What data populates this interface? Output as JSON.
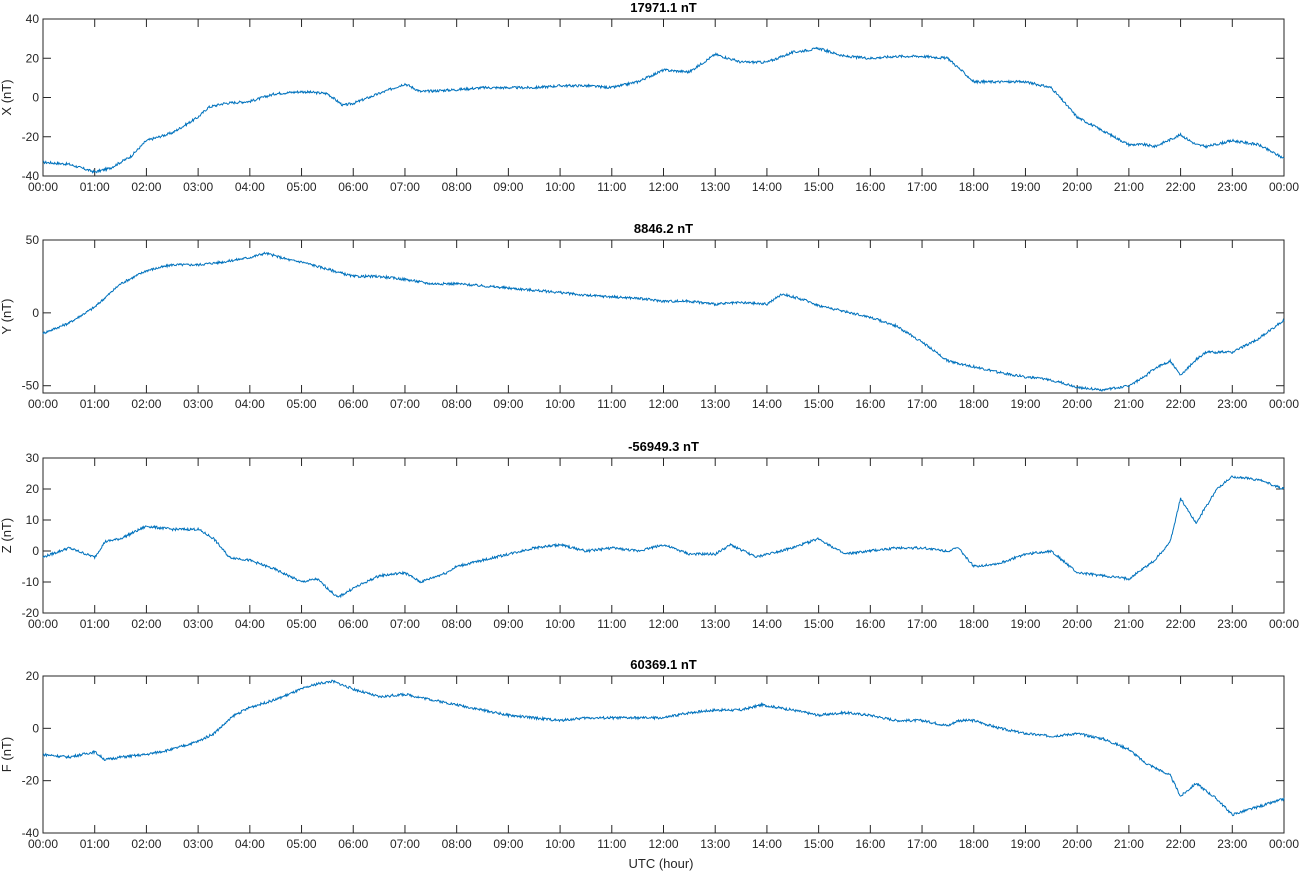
{
  "chart_data": [
    {
      "type": "line",
      "title": "17971.1 nT",
      "ylabel": "X (nT)",
      "xlabel": "",
      "ylim": [
        -40,
        40
      ],
      "yticks": [
        "-40",
        "-20",
        "0",
        "20",
        "40"
      ],
      "xticks": [
        "00:00",
        "01:00",
        "02:00",
        "03:00",
        "04:00",
        "05:00",
        "06:00",
        "07:00",
        "08:00",
        "09:00",
        "10:00",
        "11:00",
        "12:00",
        "13:00",
        "14:00",
        "15:00",
        "16:00",
        "17:00",
        "18:00",
        "19:00",
        "20:00",
        "21:00",
        "22:00",
        "23:00",
        "00:00"
      ],
      "grid": false,
      "line_color": "#0072BD",
      "series": [
        {
          "x": [
            0,
            0.5,
            1,
            1.3,
            1.7,
            2,
            2.5,
            3,
            3.2,
            3.5,
            4,
            4.5,
            5,
            5.5,
            5.8,
            6,
            6.5,
            7,
            7.3,
            8,
            8.5,
            9,
            9.5,
            10,
            10.5,
            11,
            11.5,
            12,
            12.5,
            13,
            13.5,
            14,
            14.5,
            15,
            15.5,
            16,
            16.5,
            17,
            17.5,
            18,
            18.5,
            19,
            19.5,
            20,
            20.5,
            21,
            21.3,
            21.5,
            22,
            22.3,
            22.5,
            23,
            23.5,
            24
          ],
          "values": [
            -33,
            -34,
            -38,
            -36,
            -30,
            -22,
            -18,
            -10,
            -5,
            -3,
            -2,
            2,
            3,
            2,
            -4,
            -3,
            2,
            7,
            3,
            4,
            5,
            5,
            5,
            6,
            6,
            5,
            8,
            14,
            13,
            22,
            18,
            18,
            23,
            25,
            21,
            20,
            21,
            21,
            20,
            8,
            8,
            8,
            5,
            -10,
            -17,
            -24,
            -24,
            -25,
            -19,
            -24,
            -25,
            -22,
            -24,
            -31
          ]
        }
      ]
    },
    {
      "type": "line",
      "title": "8846.2 nT",
      "ylabel": "Y (nT)",
      "xlabel": "",
      "ylim": [
        -55,
        50
      ],
      "yticks": [
        "-50",
        "0",
        "50"
      ],
      "xticks": [
        "00:00",
        "01:00",
        "02:00",
        "03:00",
        "04:00",
        "05:00",
        "06:00",
        "07:00",
        "08:00",
        "09:00",
        "10:00",
        "11:00",
        "12:00",
        "13:00",
        "14:00",
        "15:00",
        "16:00",
        "17:00",
        "18:00",
        "19:00",
        "20:00",
        "21:00",
        "22:00",
        "23:00",
        "00:00"
      ],
      "grid": false,
      "line_color": "#0072BD",
      "series": [
        {
          "x": [
            0,
            0.5,
            1,
            1.5,
            2,
            2.5,
            3,
            3.5,
            4,
            4.3,
            4.8,
            5,
            5.5,
            6,
            6.5,
            7,
            7.5,
            8,
            9,
            10,
            10.5,
            11,
            11.5,
            12,
            12.5,
            13,
            13.5,
            14,
            14.3,
            14.8,
            15,
            15.5,
            16,
            16.5,
            17,
            17.5,
            18,
            18.5,
            19,
            19.5,
            20,
            20.5,
            21,
            21.3,
            21.5,
            21.8,
            22,
            22.3,
            22.5,
            23,
            23.5,
            24
          ],
          "values": [
            -14,
            -7,
            4,
            20,
            29,
            33,
            33,
            35,
            38,
            41,
            36,
            35,
            30,
            25,
            25,
            23,
            20,
            20,
            17,
            14,
            12,
            11,
            10,
            8,
            8,
            6,
            7,
            6,
            13,
            8,
            5,
            1,
            -3,
            -9,
            -20,
            -33,
            -37,
            -41,
            -44,
            -46,
            -51,
            -53,
            -50,
            -44,
            -38,
            -33,
            -43,
            -32,
            -27,
            -27,
            -18,
            -5
          ]
        }
      ]
    },
    {
      "type": "line",
      "title": "-56949.3 nT",
      "ylabel": "Z (nT)",
      "xlabel": "",
      "ylim": [
        -20,
        30
      ],
      "yticks": [
        "-20",
        "-10",
        "0",
        "10",
        "20",
        "30"
      ],
      "xticks": [
        "00:00",
        "01:00",
        "02:00",
        "03:00",
        "04:00",
        "05:00",
        "06:00",
        "07:00",
        "08:00",
        "09:00",
        "10:00",
        "11:00",
        "12:00",
        "13:00",
        "14:00",
        "15:00",
        "16:00",
        "17:00",
        "18:00",
        "19:00",
        "20:00",
        "21:00",
        "22:00",
        "23:00",
        "00:00"
      ],
      "grid": false,
      "line_color": "#0072BD",
      "series": [
        {
          "x": [
            0,
            0.5,
            1,
            1.2,
            1.5,
            2,
            2.5,
            3,
            3.3,
            3.6,
            4,
            4.5,
            5,
            5.3,
            5.7,
            6,
            6.5,
            7,
            7.3,
            7.8,
            8,
            8.5,
            9,
            9.5,
            10,
            10.5,
            11,
            11.5,
            12,
            12.5,
            13,
            13.3,
            13.8,
            14,
            14.5,
            15,
            15.5,
            16,
            16.5,
            17,
            17.5,
            17.7,
            18,
            18.5,
            19,
            19.5,
            20,
            20.5,
            21,
            21.5,
            21.8,
            22,
            22.3,
            22.7,
            23,
            23.5,
            24
          ],
          "values": [
            -2,
            1,
            -2,
            3,
            4,
            8,
            7,
            7,
            4,
            -2,
            -3,
            -6,
            -10,
            -9,
            -15,
            -12,
            -8,
            -7,
            -10,
            -7,
            -5,
            -3,
            -1,
            1,
            2,
            0,
            1,
            0,
            2,
            -1,
            -1,
            2,
            -2,
            -1,
            1,
            4,
            -1,
            0,
            1,
            1,
            0,
            1,
            -5,
            -4,
            -1,
            0,
            -7,
            -8,
            -9,
            -3,
            3,
            17,
            9,
            20,
            24,
            23,
            20
          ]
        }
      ]
    },
    {
      "type": "line",
      "title": "60369.1 nT",
      "ylabel": "F (nT)",
      "xlabel": "UTC (hour)",
      "ylim": [
        -40,
        20
      ],
      "yticks": [
        "-40",
        "-20",
        "0",
        "20"
      ],
      "xticks": [
        "00:00",
        "01:00",
        "02:00",
        "03:00",
        "04:00",
        "05:00",
        "06:00",
        "07:00",
        "08:00",
        "09:00",
        "10:00",
        "11:00",
        "12:00",
        "13:00",
        "14:00",
        "15:00",
        "16:00",
        "17:00",
        "18:00",
        "19:00",
        "20:00",
        "21:00",
        "22:00",
        "23:00",
        "00:00"
      ],
      "grid": false,
      "line_color": "#0072BD",
      "series": [
        {
          "x": [
            0,
            0.5,
            1,
            1.2,
            1.5,
            2,
            2.5,
            3,
            3.3,
            3.7,
            4,
            4.5,
            5,
            5.3,
            5.6,
            6,
            6.5,
            7,
            7.5,
            8,
            8.5,
            9,
            9.5,
            10,
            10.5,
            11,
            11.5,
            12,
            12.5,
            13,
            13.5,
            13.9,
            14.5,
            15,
            15.5,
            16,
            16.5,
            17,
            17.5,
            17.7,
            18,
            18.5,
            19,
            19.5,
            20,
            20.5,
            21,
            21.3,
            21.5,
            21.8,
            22,
            22.3,
            22.7,
            23,
            23.5,
            24
          ],
          "values": [
            -10,
            -11,
            -9,
            -12,
            -11,
            -10,
            -8,
            -5,
            -2,
            5,
            8,
            11,
            15,
            17,
            18,
            15,
            12,
            13,
            11,
            9,
            7,
            5,
            4,
            3,
            4,
            4,
            4,
            4,
            6,
            7,
            7,
            9,
            7,
            5,
            6,
            5,
            3,
            3,
            1,
            3,
            3,
            0,
            -2,
            -3,
            -2,
            -4,
            -8,
            -13,
            -15,
            -18,
            -26,
            -21,
            -27,
            -33,
            -30,
            -27
          ]
        }
      ]
    }
  ]
}
